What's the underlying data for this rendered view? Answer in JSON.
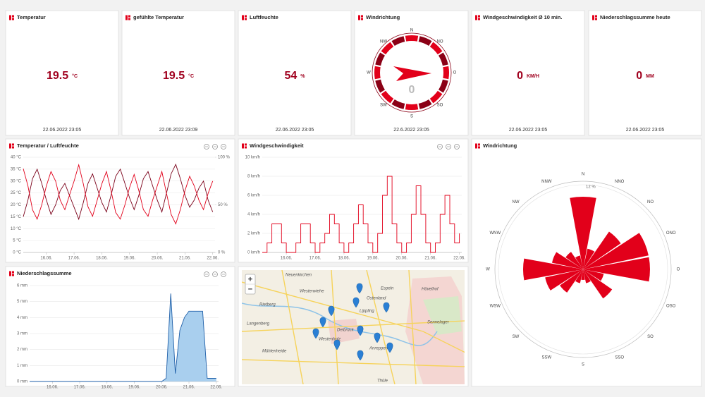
{
  "cards": [
    {
      "title": "Temperatur",
      "value": 19.5,
      "unit": "°C",
      "time": "22.06.2022 23:05"
    },
    {
      "title": "gefühlte Temperatur",
      "value": 19.5,
      "unit": "°C",
      "time": "22.06.2022 23:09"
    },
    {
      "title": "Luftfeuchte",
      "value": 54,
      "unit": "%",
      "time": "22.06.2022 23:05"
    },
    {
      "title": "Windrichtung",
      "time": "22.6.2022 23:05"
    },
    {
      "title": "Windgeschwindigkeit Ø 10 min.",
      "value": 0,
      "unit": "KM/H",
      "time": "22.06.2022 23:05"
    },
    {
      "title": "Niederschlagssumme heute",
      "value": 0,
      "unit": "MM",
      "time": "22.06.2022 23:05"
    }
  ],
  "compass": {
    "labels": [
      "N",
      "NO",
      "O",
      "SO",
      "S",
      "SW",
      "W",
      "NW"
    ],
    "value": 0
  },
  "chart_data": [
    {
      "type": "line",
      "title": "Temperatur / Luftfeuchte",
      "x": [
        -20,
        -16,
        -12,
        -8,
        -4,
        0,
        4,
        8,
        12,
        16,
        20,
        24,
        28,
        32,
        36,
        40,
        44,
        48,
        52,
        56,
        60,
        64,
        68,
        72,
        76,
        80,
        84,
        88,
        92,
        96,
        100,
        104,
        108,
        112,
        116,
        120,
        124,
        128,
        132,
        136,
        140,
        144
      ],
      "xlim": [
        -20,
        146
      ],
      "xticks": [
        {
          "value": 0,
          "label": "16.06."
        },
        {
          "value": 24,
          "label": "17.06."
        },
        {
          "value": 48,
          "label": "18.06."
        },
        {
          "value": 72,
          "label": "19.06."
        },
        {
          "value": 96,
          "label": "20.06."
        },
        {
          "value": 120,
          "label": "21.06."
        },
        {
          "value": 144,
          "label": "22.06."
        }
      ],
      "ylim": [
        0,
        40
      ],
      "yticks": [
        {
          "value": 0,
          "label": "0 °C"
        },
        {
          "value": 5,
          "label": "5 °C"
        },
        {
          "value": 10,
          "label": "10 °C"
        },
        {
          "value": 15,
          "label": "15 °C"
        },
        {
          "value": 20,
          "label": "20 °C"
        },
        {
          "value": 25,
          "label": "25 °C"
        },
        {
          "value": 30,
          "label": "30 °C"
        },
        {
          "value": 35,
          "label": "35 °C"
        },
        {
          "value": 40,
          "label": "40 °C"
        }
      ],
      "y2lim": [
        0,
        100
      ],
      "y2ticks": [
        {
          "value": 0,
          "label": "0 %"
        },
        {
          "value": 50,
          "label": "50 %"
        },
        {
          "value": 100,
          "label": "100 %"
        }
      ],
      "grid": true,
      "series": [
        {
          "color": "#7a0019",
          "values": [
            15,
            22,
            31,
            35,
            29,
            22,
            16,
            20,
            26,
            29,
            24,
            19,
            14,
            21,
            29,
            33,
            27,
            21,
            17,
            24,
            32,
            35,
            29,
            23,
            18,
            24,
            31,
            34,
            28,
            22,
            17,
            25,
            33,
            37,
            31,
            24,
            19,
            22,
            27,
            30,
            22,
            17
          ]
        },
        {
          "color": "#e2001a",
          "axis": "y2",
          "values": [
            88,
            70,
            45,
            35,
            50,
            70,
            85,
            75,
            55,
            45,
            60,
            75,
            92,
            72,
            48,
            38,
            55,
            72,
            85,
            65,
            42,
            35,
            50,
            68,
            82,
            65,
            45,
            38,
            55,
            70,
            85,
            62,
            40,
            30,
            45,
            65,
            80,
            70,
            55,
            45,
            62,
            75
          ]
        }
      ]
    },
    {
      "type": "line",
      "step": true,
      "title": "Windgeschwindigkeit",
      "x": [
        -20,
        -16,
        -12,
        -8,
        -4,
        0,
        4,
        8,
        12,
        16,
        20,
        24,
        28,
        32,
        36,
        40,
        44,
        48,
        52,
        56,
        60,
        64,
        68,
        72,
        76,
        80,
        84,
        88,
        92,
        96,
        100,
        104,
        108,
        112,
        116,
        120,
        124,
        128,
        132,
        136,
        140,
        144
      ],
      "xlim": [
        -20,
        146
      ],
      "xticks": [
        {
          "value": 0,
          "label": "16.06."
        },
        {
          "value": 24,
          "label": "17.06."
        },
        {
          "value": 48,
          "label": "18.06."
        },
        {
          "value": 72,
          "label": "19.06."
        },
        {
          "value": 96,
          "label": "20.06."
        },
        {
          "value": 120,
          "label": "21.06."
        },
        {
          "value": 144,
          "label": "22.06."
        }
      ],
      "ylim": [
        0,
        10
      ],
      "yticks": [
        {
          "value": 0,
          "label": "0 km/h"
        },
        {
          "value": 2,
          "label": "2 km/h"
        },
        {
          "value": 4,
          "label": "4 km/h"
        },
        {
          "value": 6,
          "label": "6 km/h"
        },
        {
          "value": 8,
          "label": "8 km/h"
        },
        {
          "value": 10,
          "label": "10 km/h"
        }
      ],
      "grid": true,
      "series": [
        {
          "color": "#e2001a",
          "values": [
            0,
            1,
            3,
            3,
            1,
            0,
            0,
            1,
            3,
            3,
            1,
            0,
            1,
            2,
            4,
            3,
            1,
            0,
            1,
            3,
            5,
            3,
            1,
            0,
            2,
            6,
            8,
            3,
            1,
            0,
            1,
            4,
            7,
            4,
            1,
            0,
            1,
            4,
            6,
            3,
            1,
            2
          ]
        }
      ]
    },
    {
      "type": "area",
      "title": "Niederschlagssumme",
      "x": [
        -20,
        -16,
        -12,
        -8,
        -4,
        0,
        4,
        8,
        12,
        16,
        20,
        24,
        28,
        32,
        36,
        40,
        44,
        48,
        52,
        56,
        60,
        64,
        68,
        72,
        76,
        80,
        84,
        88,
        92,
        96,
        100,
        104,
        108,
        112,
        116,
        120,
        124,
        128,
        132,
        136,
        140,
        144
      ],
      "xlim": [
        -20,
        146
      ],
      "xticks": [
        {
          "value": 0,
          "label": "16.06."
        },
        {
          "value": 24,
          "label": "17.06."
        },
        {
          "value": 48,
          "label": "18.06."
        },
        {
          "value": 72,
          "label": "19.06."
        },
        {
          "value": 96,
          "label": "20.06."
        },
        {
          "value": 120,
          "label": "21.06."
        },
        {
          "value": 144,
          "label": "22.06."
        }
      ],
      "ylim": [
        0,
        6
      ],
      "yticks": [
        {
          "value": 0,
          "label": "0 mm"
        },
        {
          "value": 1,
          "label": "1 mm"
        },
        {
          "value": 2,
          "label": "2 mm"
        },
        {
          "value": 3,
          "label": "3 mm"
        },
        {
          "value": 4,
          "label": "4 mm"
        },
        {
          "value": 5,
          "label": "5 mm"
        },
        {
          "value": 6,
          "label": "6 mm"
        }
      ],
      "grid": true,
      "series": [
        {
          "color": "#1f5fa8",
          "fill": "#a9cfee",
          "values": [
            0,
            0,
            0,
            0,
            0,
            0,
            0,
            0,
            0,
            0,
            0,
            0,
            0,
            0,
            0,
            0,
            0,
            0,
            0,
            0,
            0,
            0,
            0,
            0,
            0,
            0,
            0,
            0,
            0,
            0,
            0.2,
            5.5,
            0.5,
            3.2,
            4.0,
            4.4,
            4.4,
            4.4,
            4.4,
            0.2,
            0.2,
            0.2
          ]
        }
      ]
    },
    {
      "type": "windrose",
      "title": "Windrichtung",
      "categories": [
        "N",
        "NNO",
        "NO",
        "ONO",
        "O",
        "OSO",
        "SO",
        "SSO",
        "S",
        "SSW",
        "SW",
        "WSW",
        "W",
        "WNW",
        "NW",
        "NNW"
      ],
      "values": [
        10.3,
        3,
        6.5,
        9.5,
        9.5,
        3,
        5,
        2,
        1.5,
        2,
        4,
        5.5,
        8.5,
        4.5,
        3,
        2
      ],
      "color": "#e2001a",
      "rlim": [
        0,
        12.5
      ],
      "rticks": [
        {
          "value": 12,
          "label": "12 %"
        }
      ]
    }
  ],
  "map": {
    "zoom_in": "+",
    "zoom_out": "−",
    "labels": [
      "Rietberg",
      "Delbrück",
      "Hövelhof",
      "Langenberg",
      "Westerwiehe",
      "Sennelager",
      "Espeln",
      "Westenholz",
      "Lippling",
      "Anreppen",
      "Mühlenheide",
      "Neuenkirchen",
      "Ostenland",
      "Thüle"
    ]
  }
}
